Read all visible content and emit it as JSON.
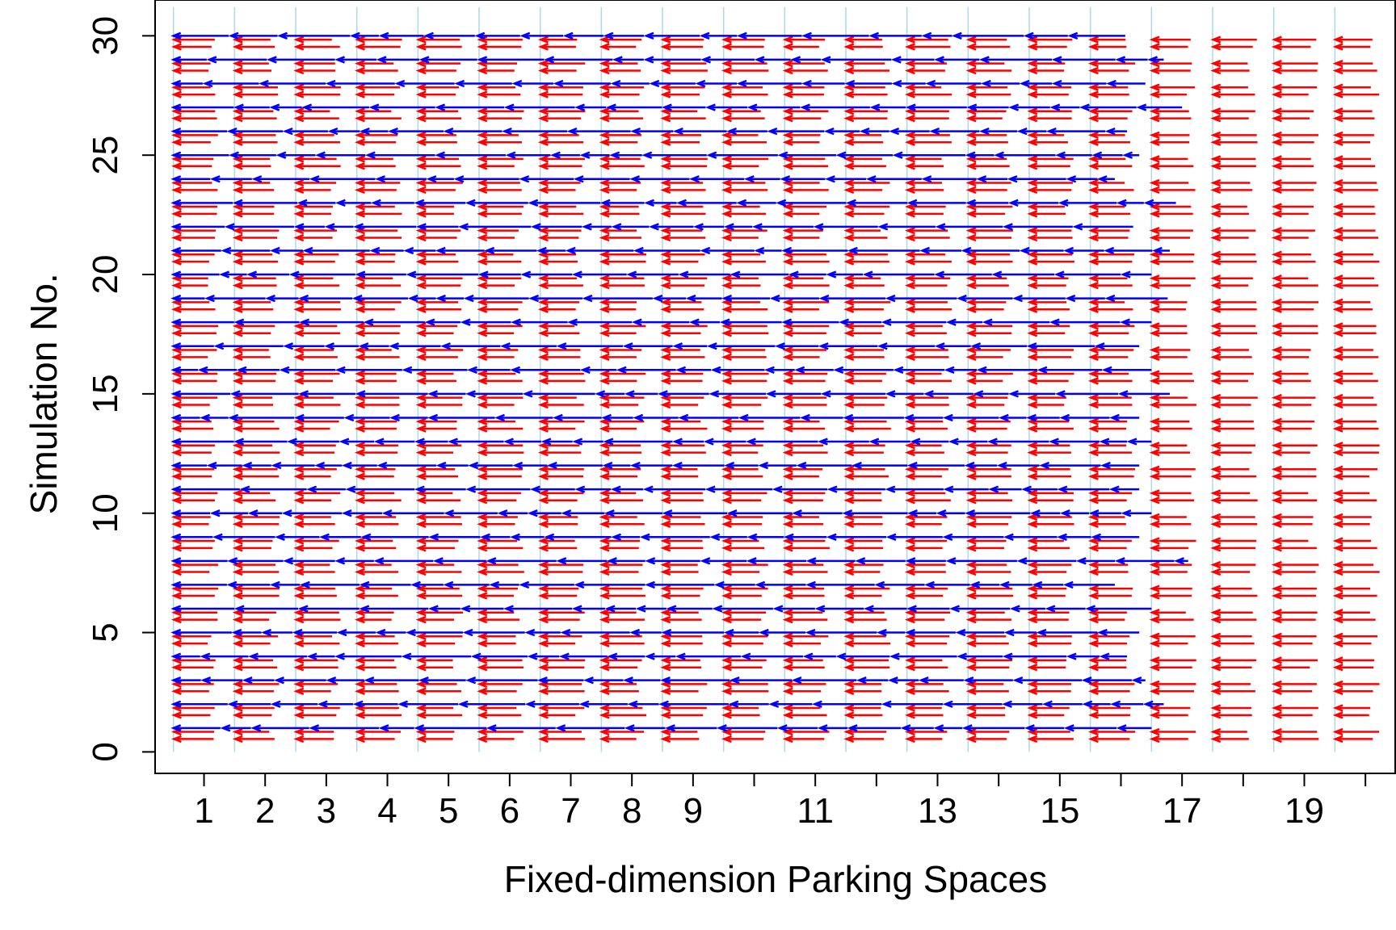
{
  "chart_data": {
    "type": "arrow-plot",
    "title": "",
    "xlabel": "Fixed-dimension Parking Spaces",
    "ylabel": "Simulation No.",
    "xlim": [
      0.2,
      20.5
    ],
    "ylim": [
      -0.9,
      31.5
    ],
    "x_tick_positions": [
      1,
      2,
      3,
      4,
      5,
      6,
      7,
      8,
      9,
      10,
      11,
      12,
      13,
      14,
      15,
      16,
      17,
      18,
      19,
      20
    ],
    "x_tick_labels": [
      "1",
      "2",
      "3",
      "4",
      "5",
      "6",
      "7",
      "8",
      "9",
      "11",
      "13",
      "15",
      "17",
      "19"
    ],
    "x_tick_label_values": [
      1,
      2,
      3,
      4,
      5,
      6,
      7,
      8,
      9,
      11,
      13,
      15,
      17,
      19
    ],
    "y_ticks": [
      0,
      5,
      10,
      15,
      20,
      25,
      30
    ],
    "y_tick_labels": [
      "0",
      "5",
      "10",
      "15",
      "20",
      "25",
      "30"
    ],
    "space_boundaries": [
      0.5,
      1.5,
      2.5,
      3.5,
      4.5,
      5.5,
      6.5,
      7.5,
      8.5,
      9.5,
      10.5,
      11.5,
      12.5,
      13.5,
      14.5,
      15.5,
      16.5,
      17.5,
      18.5,
      19.5,
      20.5
    ],
    "simulations": [
      1,
      2,
      3,
      4,
      5,
      6,
      7,
      8,
      9,
      10,
      11,
      12,
      13,
      14,
      15,
      16,
      17,
      18,
      19,
      20,
      21,
      22,
      23,
      24,
      25,
      26,
      27,
      28,
      29,
      30
    ],
    "series": [
      {
        "name": "",
        "color": "#ff0000",
        "row_offset": -0.3,
        "description": "two rows of leftward arrows per simulation, one arrow per fixed-dimension space",
        "spaces_per_row": 20
      },
      {
        "name": "",
        "color": "#0000ff",
        "row_offset": 0,
        "description": "one row of leftward arrows per simulation, packed vehicles in a variable number of spaces",
        "spaces_used_per_simulation": [
          16.0,
          16.2,
          15.9,
          15.6,
          15.8,
          16.0,
          15.4,
          16.6,
          15.8,
          16.0,
          15.8,
          15.8,
          16.0,
          15.8,
          16.3,
          16.0,
          15.8,
          16.0,
          16.4,
          16.0,
          16.3,
          15.7,
          16.4,
          15.4,
          15.8,
          15.6,
          16.5,
          15.9,
          16.2,
          15.7
        ]
      }
    ],
    "grid": false,
    "legend": "none"
  },
  "colors": {
    "red_arrows": "#ff0000",
    "blue_arrows": "#0000ff",
    "space_lines": "#add8e6",
    "axis": "#000000"
  }
}
